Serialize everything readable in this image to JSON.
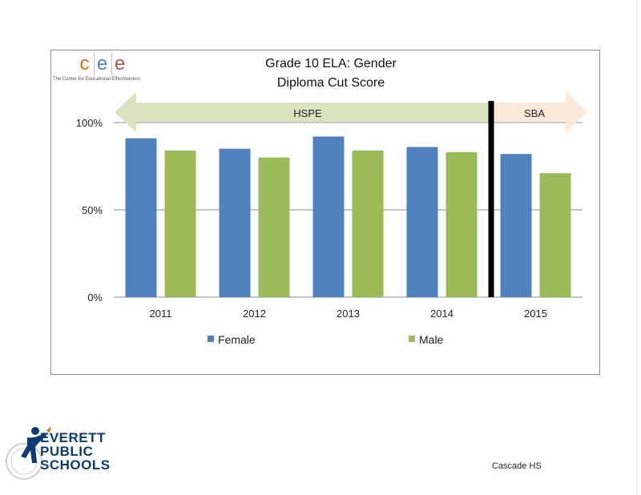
{
  "chart_data": {
    "type": "bar",
    "title": "Grade 10 ELA: Gender",
    "subtitle": "Diploma Cut Score",
    "categories": [
      "2011",
      "2012",
      "2013",
      "2014",
      "2015"
    ],
    "series": [
      {
        "name": "Female",
        "color": "#4f81bd",
        "values": [
          0.91,
          0.85,
          0.92,
          0.86,
          0.82
        ]
      },
      {
        "name": "Male",
        "color": "#9bbb59",
        "values": [
          0.84,
          0.8,
          0.84,
          0.83,
          0.71
        ]
      }
    ],
    "ylim": [
      0,
      1
    ],
    "yticks": [
      {
        "value": 0,
        "label": "0%"
      },
      {
        "value": 0.5,
        "label": "50%"
      },
      {
        "value": 1,
        "label": "100%"
      }
    ],
    "grid": true,
    "legend": "bottom",
    "annotations": {
      "hspe_label": "HSPE",
      "sba_label": "SBA",
      "hspe_color": "#d7e4bd",
      "sba_color": "#fde9d9",
      "divider_color": "#000000"
    }
  },
  "logo": {
    "cee_letters": [
      "c",
      "e",
      "e"
    ],
    "cee_colors": [
      "#e36c0a",
      "#4f81bd",
      "#c0504d"
    ],
    "cee_tagline": "The Center for Educational Effectiveness",
    "eps_lines": [
      "EVERETT",
      "PUBLIC",
      "SCHOOLS"
    ]
  },
  "footer": {
    "school": "Cascade HS"
  }
}
